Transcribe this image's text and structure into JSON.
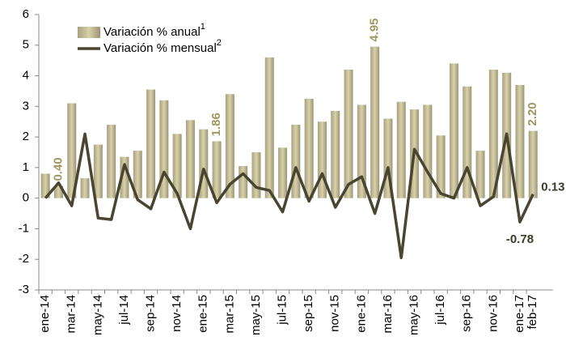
{
  "chart_data": {
    "type": "bar-line",
    "categories": [
      "ene-14",
      null,
      "mar-14",
      null,
      "may-14",
      null,
      "jul-14",
      null,
      "sep-14",
      null,
      "nov-14",
      null,
      "ene-15",
      null,
      "mar-15",
      null,
      "may-15",
      null,
      "jul-15",
      null,
      "sep-15",
      null,
      "nov-15",
      null,
      "ene-16",
      null,
      "mar-16",
      null,
      "may-16",
      null,
      "jul-16",
      null,
      "sep-16",
      null,
      "nov-16",
      null,
      "ene-17",
      "feb-17"
    ],
    "series": [
      {
        "name": "Variación % anual",
        "name_sup": "1",
        "type": "bar",
        "color": "#d8d2aa",
        "label_color": "#a09660",
        "values": [
          0.8,
          0.4,
          3.1,
          0.65,
          1.75,
          2.4,
          1.35,
          1.55,
          3.55,
          3.2,
          2.1,
          2.55,
          2.25,
          1.86,
          3.4,
          1.05,
          1.5,
          4.6,
          1.65,
          2.4,
          3.25,
          2.5,
          2.85,
          4.2,
          3.05,
          4.95,
          2.6,
          3.15,
          2.9,
          3.05,
          2.05,
          4.4,
          3.65,
          1.55,
          4.2,
          4.1,
          3.7,
          2.2
        ],
        "value_labels": [
          null,
          "0.40",
          null,
          null,
          null,
          null,
          null,
          null,
          null,
          null,
          null,
          null,
          null,
          "1.86",
          null,
          null,
          null,
          null,
          null,
          null,
          null,
          null,
          null,
          null,
          null,
          "4.95",
          null,
          null,
          null,
          null,
          null,
          null,
          null,
          null,
          null,
          null,
          null,
          "2.20"
        ]
      },
      {
        "name": "Variación % mensual",
        "name_sup": "2",
        "type": "line",
        "color": "#4a4530",
        "label_color": "#3f3b28",
        "values": [
          0.0,
          0.5,
          -0.25,
          2.1,
          -0.65,
          -0.7,
          1.1,
          -0.05,
          -0.35,
          0.85,
          0.15,
          -1.0,
          0.95,
          -0.15,
          0.45,
          0.8,
          0.35,
          0.25,
          -0.45,
          1.0,
          -0.1,
          0.8,
          -0.3,
          0.45,
          0.7,
          -0.5,
          1.0,
          -1.95,
          1.6,
          0.85,
          0.15,
          0.0,
          1.0,
          -0.25,
          0.05,
          2.1,
          -0.78,
          0.13
        ],
        "value_labels": [
          null,
          null,
          null,
          null,
          null,
          null,
          null,
          null,
          null,
          null,
          null,
          null,
          null,
          null,
          null,
          null,
          null,
          null,
          null,
          null,
          null,
          null,
          null,
          null,
          null,
          null,
          null,
          null,
          null,
          null,
          null,
          null,
          null,
          null,
          null,
          null,
          "-0.78",
          "0.13"
        ]
      }
    ],
    "ylim": [
      -3,
      6
    ],
    "yticks": [
      -3,
      -2,
      -1,
      0,
      1,
      2,
      3,
      4,
      5,
      6
    ]
  }
}
